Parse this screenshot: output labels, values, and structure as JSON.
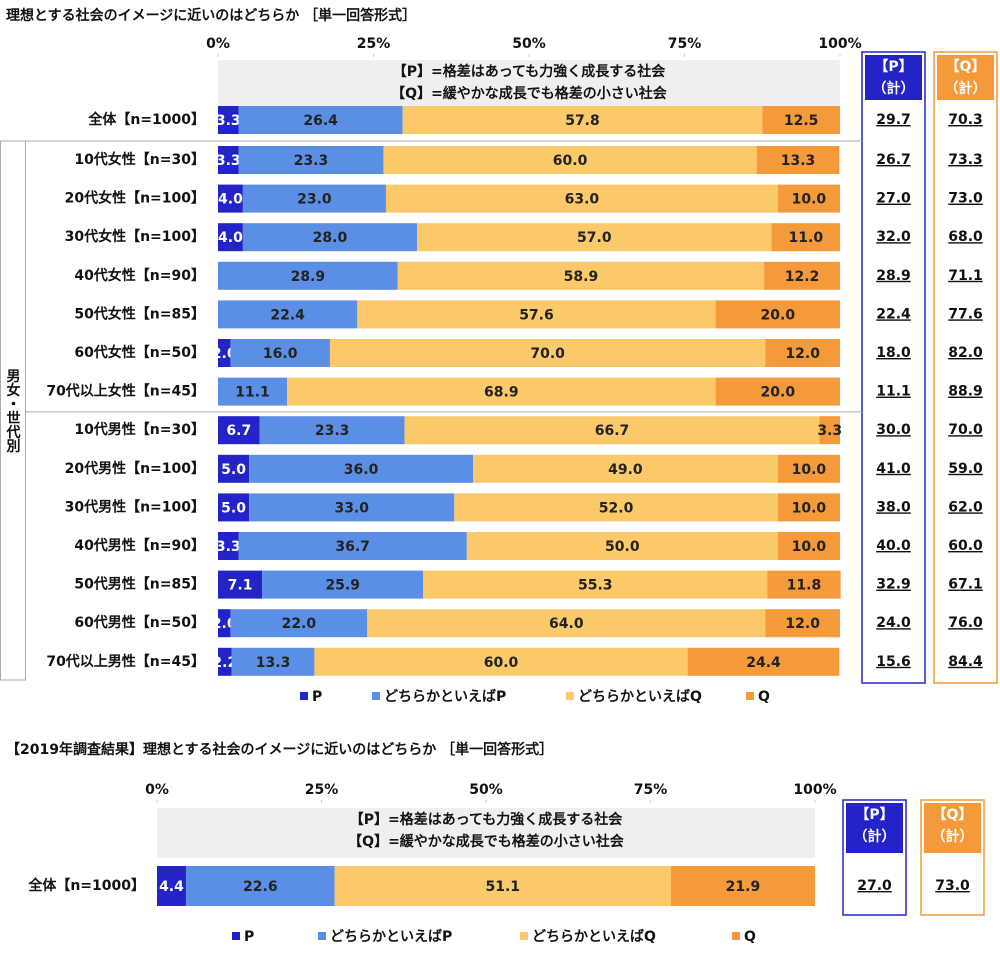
{
  "chart_data": [
    {
      "type": "bar",
      "orientation": "horizontal",
      "stacked": true,
      "title": "理想とする社会のイメージに近いのはどちらか ［単一回答形式］",
      "note": [
        "【P】=格差はあっても力強く成長する社会",
        "【Q】=緩やかな成長でも格差の小さい社会"
      ],
      "group_label": "男女・世代別",
      "categories": [
        "全体【n=1000】",
        "10代女性【n=30】",
        "20代女性【n=100】",
        "30代女性【n=100】",
        "40代女性【n=90】",
        "50代女性【n=85】",
        "60代女性【n=50】",
        "70代以上女性【n=45】",
        "10代男性【n=30】",
        "20代男性【n=100】",
        "30代男性【n=100】",
        "40代男性【n=90】",
        "50代男性【n=85】",
        "60代男性【n=50】",
        "70代以上男性【n=45】"
      ],
      "series": [
        {
          "name": "P",
          "color": "#2323c8",
          "values": [
            3.3,
            3.3,
            4.0,
            4.0,
            0,
            0,
            2.0,
            0,
            6.7,
            5.0,
            5.0,
            3.3,
            7.1,
            2.0,
            2.2
          ],
          "value_labels": [
            "3.3",
            "3.3",
            "4.0",
            "4.0",
            null,
            null,
            "2.0",
            null,
            "6.7",
            "5.0",
            "5.0",
            "3.3",
            "7.1",
            "2.0",
            "2.2"
          ]
        },
        {
          "name": "どちらかといえばP",
          "color": "#5b8fe6",
          "values": [
            26.4,
            23.3,
            23.0,
            28.0,
            28.9,
            22.4,
            16.0,
            11.1,
            23.3,
            36.0,
            33.0,
            36.7,
            25.9,
            22.0,
            13.3
          ],
          "value_labels": [
            "26.4",
            "23.3",
            "23.0",
            "28.0",
            "28.9",
            "22.4",
            "16.0",
            "11.1",
            "23.3",
            "36.0",
            "33.0",
            "36.7",
            "25.9",
            "22.0",
            "13.3"
          ]
        },
        {
          "name": "どちらかといえばQ",
          "color": "#fcc96a",
          "values": [
            57.8,
            60.0,
            63.0,
            57.0,
            58.9,
            57.6,
            70.0,
            68.9,
            66.7,
            49.0,
            52.0,
            50.0,
            55.3,
            64.0,
            60.0
          ],
          "value_labels": [
            "57.8",
            "60.0",
            "63.0",
            "57.0",
            "58.9",
            "57.6",
            "70.0",
            "68.9",
            "66.7",
            "49.0",
            "52.0",
            "50.0",
            "55.3",
            "64.0",
            "60.0"
          ]
        },
        {
          "name": "Q",
          "color": "#f59a3a",
          "values": [
            12.5,
            13.3,
            10.0,
            11.0,
            12.2,
            20.0,
            12.0,
            20.0,
            3.3,
            10.0,
            10.0,
            10.0,
            11.8,
            12.0,
            24.4
          ],
          "value_labels": [
            "12.5",
            "13.3",
            "10.0",
            "11.0",
            "12.2",
            "20.0",
            "12.0",
            "20.0",
            "3.3",
            "10.0",
            "10.0",
            "10.0",
            "11.8",
            "12.0",
            "24.4"
          ]
        }
      ],
      "xlim": [
        0,
        100
      ],
      "xticks": [
        {
          "value": 0,
          "label": "0%"
        },
        {
          "value": 25,
          "label": "25%"
        },
        {
          "value": 50,
          "label": "50%"
        },
        {
          "value": 75,
          "label": "75%"
        },
        {
          "value": 100,
          "label": "100%"
        }
      ],
      "legend": "bottom",
      "totals": [
        {
          "header": [
            "【P】",
            "（計）"
          ],
          "color": "#2323c8",
          "values": [
            "29.7",
            "26.7",
            "27.0",
            "32.0",
            "28.9",
            "22.4",
            "18.0",
            "11.1",
            "30.0",
            "41.0",
            "38.0",
            "40.0",
            "32.9",
            "24.0",
            "15.6"
          ]
        },
        {
          "header": [
            "【Q】",
            "（計）"
          ],
          "color": "#f59a3a",
          "values": [
            "70.3",
            "73.3",
            "73.0",
            "68.0",
            "71.1",
            "77.6",
            "82.0",
            "88.9",
            "70.0",
            "59.0",
            "62.0",
            "60.0",
            "67.1",
            "76.0",
            "84.4"
          ]
        }
      ]
    },
    {
      "type": "bar",
      "orientation": "horizontal",
      "stacked": true,
      "title": "【2019年調査結果】理想とする社会のイメージに近いのはどちらか ［単一回答形式］",
      "note": [
        "【P】=格差はあっても力強く成長する社会",
        "【Q】=緩やかな成長でも格差の小さい社会"
      ],
      "categories": [
        "全体【n=1000】"
      ],
      "series": [
        {
          "name": "P",
          "color": "#2323c8",
          "values": [
            4.4
          ],
          "value_labels": [
            "4.4"
          ]
        },
        {
          "name": "どちらかといえばP",
          "color": "#5b8fe6",
          "values": [
            22.6
          ],
          "value_labels": [
            "22.6"
          ]
        },
        {
          "name": "どちらかといえばQ",
          "color": "#fcc96a",
          "values": [
            51.1
          ],
          "value_labels": [
            "51.1"
          ]
        },
        {
          "name": "Q",
          "color": "#f59a3a",
          "values": [
            21.9
          ],
          "value_labels": [
            "21.9"
          ]
        }
      ],
      "xlim": [
        0,
        100
      ],
      "xticks": [
        {
          "value": 0,
          "label": "0%"
        },
        {
          "value": 25,
          "label": "25%"
        },
        {
          "value": 50,
          "label": "50%"
        },
        {
          "value": 75,
          "label": "75%"
        },
        {
          "value": 100,
          "label": "100%"
        }
      ],
      "legend": "bottom",
      "totals": [
        {
          "header": [
            "【P】",
            "（計）"
          ],
          "color": "#2323c8",
          "values": [
            "27.0"
          ]
        },
        {
          "header": [
            "【Q】",
            "（計）"
          ],
          "color": "#f59a3a",
          "values": [
            "73.0"
          ]
        }
      ]
    }
  ]
}
